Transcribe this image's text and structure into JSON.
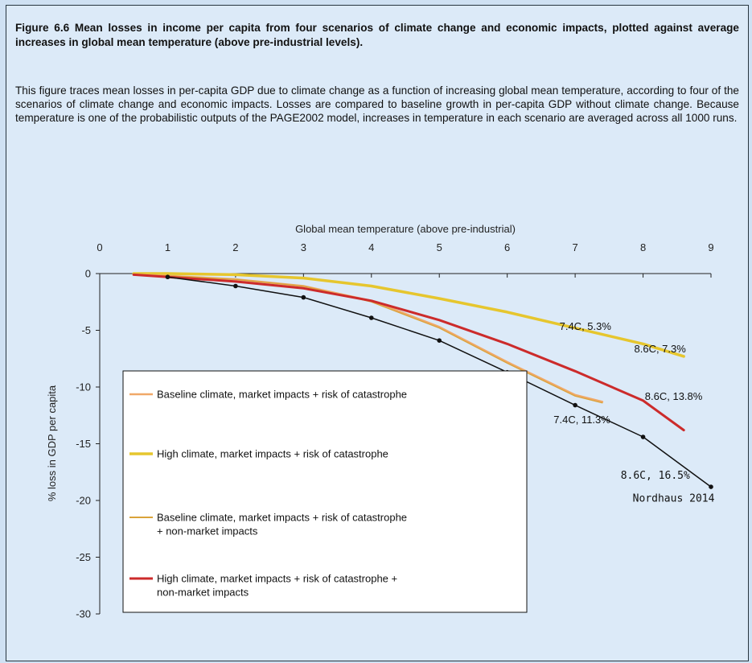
{
  "figure": {
    "title": "Figure 6.6 Mean losses in income per capita from four scenarios of climate change and economic impacts, plotted against average increases in global mean temperature (above pre-industrial levels).",
    "description": "This figure traces mean losses in per-capita GDP due to climate change as a function of increasing global mean temperature, according to four of the scenarios of climate change and economic impacts. Losses are compared to baseline growth in per-capita GDP without climate change. Because temperature is one of the probabilistic outputs of the PAGE2002 model, increases in temperature in each scenario are averaged across all 1000 runs."
  },
  "chart_data": {
    "type": "line",
    "xlabel": "Global mean temperature (above pre-industrial)",
    "ylabel": "% loss in GDP per capita",
    "x_ticks": [
      "0",
      "1",
      "2",
      "3",
      "4",
      "5",
      "6",
      "7",
      "8",
      "9"
    ],
    "y_ticks": [
      "0",
      "-5",
      "-10",
      "-15",
      "-20",
      "-25",
      "-30"
    ],
    "xlim": [
      0,
      9
    ],
    "ylim": [
      -30,
      0
    ],
    "grid": false,
    "legend_position": "bottom-left",
    "series": [
      {
        "name": "Baseline climate, market impacts + risk of catastrophe",
        "color": "#f0a868",
        "width": 2.5,
        "points": [
          [
            0.5,
            -0.1
          ],
          [
            1,
            -0.2
          ],
          [
            2,
            -0.5
          ],
          [
            3,
            -1.1
          ],
          [
            4,
            -2.4
          ],
          [
            5,
            -4.7
          ],
          [
            6,
            -7.8
          ],
          [
            7,
            -10.7
          ],
          [
            7.4,
            -11.3
          ]
        ]
      },
      {
        "name": "High climate, market impacts + risk of catastrophe",
        "color": "#e6c62e",
        "width": 3.5,
        "points": [
          [
            0.5,
            0
          ],
          [
            1,
            0
          ],
          [
            2,
            -0.1
          ],
          [
            3,
            -0.4
          ],
          [
            4,
            -1.1
          ],
          [
            5,
            -2.2
          ],
          [
            6,
            -3.4
          ],
          [
            7,
            -4.8
          ],
          [
            8,
            -6.2
          ],
          [
            8.6,
            -7.3
          ]
        ]
      },
      {
        "name": "Baseline climate, market impacts + risk of catastrophe + non-market impacts",
        "color": "#d9a33a",
        "width": 1.3,
        "points": [
          [
            0.5,
            -0.1
          ],
          [
            1,
            -0.2
          ],
          [
            2,
            -0.5
          ],
          [
            3,
            -1.1
          ],
          [
            4,
            -2.5
          ],
          [
            5,
            -4.8
          ],
          [
            6,
            -7.9
          ],
          [
            7,
            -10.8
          ],
          [
            7.4,
            -11.4
          ]
        ]
      },
      {
        "name": "High climate, market impacts + risk of catastrophe + non-market impacts",
        "color": "#cc2b2b",
        "width": 3,
        "points": [
          [
            0.5,
            -0.1
          ],
          [
            1,
            -0.3
          ],
          [
            2,
            -0.7
          ],
          [
            3,
            -1.3
          ],
          [
            4,
            -2.4
          ],
          [
            5,
            -4.1
          ],
          [
            6,
            -6.2
          ],
          [
            7,
            -8.6
          ],
          [
            8,
            -11.2
          ],
          [
            8.6,
            -13.8
          ]
        ]
      }
    ],
    "extra_series": [
      {
        "color": "#111111",
        "width": 1.5,
        "markers": true,
        "points": [
          [
            1,
            -0.3
          ],
          [
            2,
            -1.1
          ],
          [
            3,
            -2.1
          ],
          [
            4,
            -3.9
          ],
          [
            5,
            -5.9
          ],
          [
            6,
            -8.7
          ],
          [
            7,
            -11.6
          ],
          [
            8,
            -14.4
          ],
          [
            9,
            -18.8
          ]
        ]
      }
    ],
    "annotations": [
      {
        "text": "7.4C, 5.3%",
        "x": 7.15,
        "y": -4.95,
        "anchor": "middle",
        "mono": false
      },
      {
        "text": "8.6C, 7.3%",
        "x": 8.25,
        "y": -6.95,
        "anchor": "middle",
        "mono": false
      },
      {
        "text": "8.6C, 13.8%",
        "x": 8.45,
        "y": -11.15,
        "anchor": "middle",
        "mono": false
      },
      {
        "text": "7.4C, 11.3%",
        "x": 7.1,
        "y": -13.2,
        "anchor": "middle",
        "mono": false
      },
      {
        "text": "8.6C, 16.5%",
        "x": 8.18,
        "y": -18.1,
        "anchor": "middle",
        "mono": true
      },
      {
        "text": "Nordhaus 2014",
        "x": 8.45,
        "y": -20.1,
        "anchor": "middle",
        "mono": true
      }
    ]
  }
}
